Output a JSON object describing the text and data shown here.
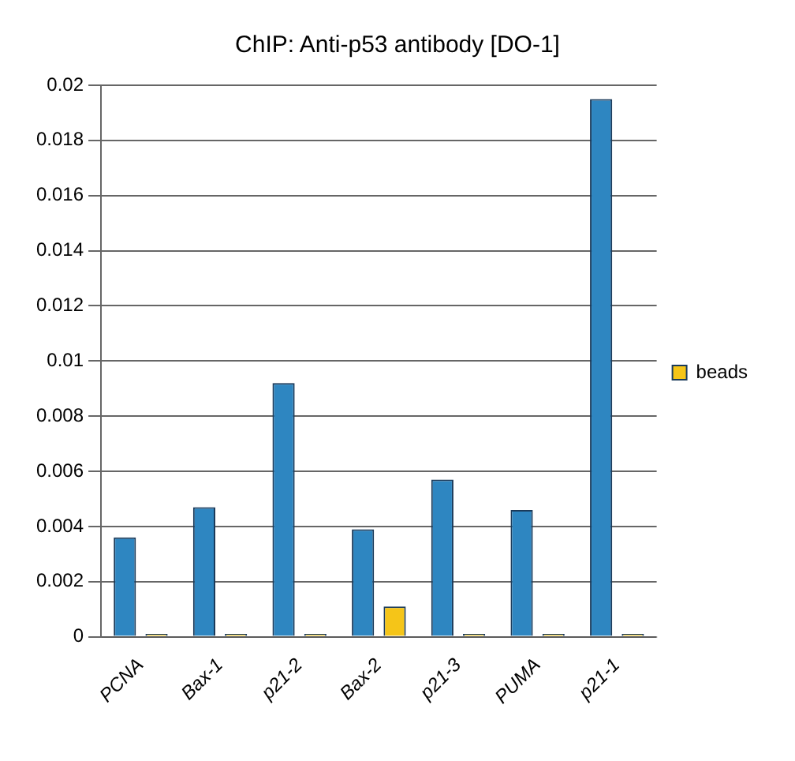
{
  "chart_data": {
    "type": "bar",
    "title": "ChIP: Anti-p53 antibody [DO-1]",
    "categories": [
      "PCNA",
      "Bax-1",
      "p21-2",
      "Bax-2",
      "p21-3",
      "PUMA",
      "p21-1"
    ],
    "series": [
      {
        "color": "#2e86c1",
        "values": [
          0.0036,
          0.0047,
          0.0092,
          0.0039,
          0.0057,
          0.0046,
          0.0195
        ]
      },
      {
        "name": "beads",
        "color": "#f5c518",
        "values": [
          0.0001,
          0.0001,
          0.0001,
          0.0011,
          0.0001,
          0.0001,
          0.0001
        ]
      }
    ],
    "ylim": [
      0,
      0.02
    ],
    "yticks": [
      0,
      0.002,
      0.004,
      0.006,
      0.008,
      0.01,
      0.012,
      0.014,
      0.016,
      0.018,
      0.02
    ],
    "grid": "y",
    "legend": "right"
  }
}
